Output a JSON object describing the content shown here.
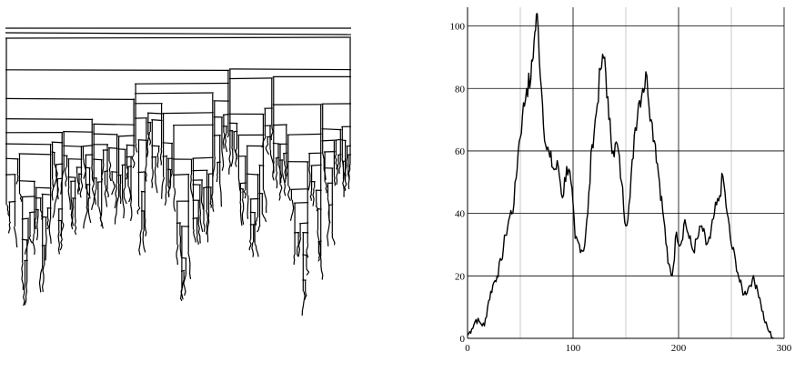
{
  "colors": {
    "stroke": "#000000",
    "major_grid": "#000000",
    "minor_grid": "#c8c8c8",
    "background": "#ffffff"
  },
  "chart_data": [
    {
      "type": "tree",
      "title": "",
      "depth_levels": 18,
      "leaves": 300
    },
    {
      "type": "line",
      "title": "",
      "xlabel": "",
      "ylabel": "",
      "xlim": [
        0,
        300
      ],
      "ylim": [
        0,
        106
      ],
      "x_ticks": [
        "0",
        "100",
        "200",
        "300"
      ],
      "y_ticks": [
        "0",
        "20",
        "40",
        "60",
        "80",
        "100"
      ],
      "x_tick_values": [
        0,
        100,
        200,
        300
      ],
      "y_tick_values": [
        0,
        20,
        40,
        60,
        80,
        100
      ],
      "grid": true,
      "legend": "none",
      "series": [
        {
          "x": [
            0,
            4,
            8,
            12,
            16,
            20,
            24,
            28,
            32,
            36,
            40,
            44,
            48,
            52,
            56,
            60,
            63,
            66,
            70,
            74,
            78,
            82,
            86,
            90,
            94,
            98,
            102,
            106,
            110,
            114,
            118,
            122,
            126,
            130,
            134,
            138,
            142,
            146,
            150,
            154,
            158,
            162,
            166,
            170,
            174,
            178,
            182,
            186,
            190,
            194,
            198,
            202,
            206,
            210,
            214,
            218,
            222,
            226,
            230,
            234,
            238,
            242,
            246,
            250,
            254,
            258,
            262,
            266,
            270,
            274,
            278,
            282,
            286,
            290
          ],
          "y": [
            1,
            3,
            6,
            5,
            4,
            12,
            17,
            20,
            25,
            33,
            39,
            43,
            60,
            71,
            80,
            83,
            95,
            104,
            80,
            62,
            58,
            54,
            55,
            45,
            55,
            50,
            32,
            30,
            28,
            40,
            62,
            72,
            86,
            90,
            70,
            60,
            62,
            50,
            36,
            45,
            65,
            75,
            80,
            84,
            70,
            62,
            50,
            38,
            24,
            20,
            34,
            30,
            38,
            32,
            28,
            32,
            36,
            30,
            32,
            40,
            44,
            52,
            40,
            30,
            25,
            18,
            14,
            16,
            19,
            17,
            11,
            5,
            2,
            0
          ]
        }
      ]
    }
  ]
}
